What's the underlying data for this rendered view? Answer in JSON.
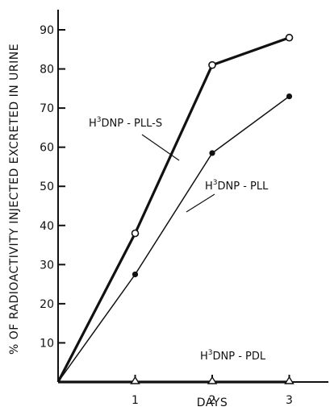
{
  "chart_data": {
    "type": "line",
    "xlabel": "DAYS",
    "ylabel": "% OF RADIOACTIVITY INJECTED EXCRETED IN URINE",
    "xlim": [
      0,
      3.35
    ],
    "ylim": [
      0,
      95
    ],
    "x_ticks": [
      1,
      2,
      3
    ],
    "y_ticks": [
      10,
      20,
      30,
      40,
      50,
      60,
      70,
      80,
      90
    ],
    "grid": false,
    "legend": "none",
    "series": [
      {
        "name_parts": {
          "prefix": "H",
          "sup": "3",
          "suffix": "DNP - PLL-S"
        },
        "marker": "open-circle",
        "line_weight": "heavy",
        "x": [
          0,
          1,
          2,
          3
        ],
        "y": [
          0,
          38,
          81,
          88
        ]
      },
      {
        "name_parts": {
          "prefix": "H",
          "sup": "3",
          "suffix": "DNP - PLL"
        },
        "marker": "filled-circle",
        "line_weight": "light",
        "x": [
          0,
          1,
          2,
          3
        ],
        "y": [
          0,
          27.5,
          58.5,
          73
        ]
      },
      {
        "name_parts": {
          "prefix": "H",
          "sup": "3",
          "suffix": "DNP - PDL"
        },
        "marker": "open-triangle",
        "line_weight": "heavy",
        "x": [
          0,
          1,
          2,
          3
        ],
        "y": [
          0,
          0,
          0,
          0
        ]
      }
    ]
  }
}
